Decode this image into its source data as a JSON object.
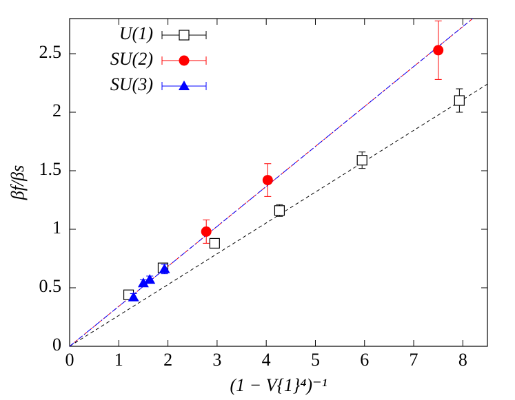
{
  "chart_data": {
    "type": "scatter",
    "x_label": "(1 − V{1}⁴)⁻¹",
    "y_label": "βf/βs",
    "xlim": [
      0,
      8.5
    ],
    "ylim": [
      0,
      2.8
    ],
    "xticks": [
      0,
      1,
      2,
      3,
      4,
      5,
      6,
      7,
      8
    ],
    "yticks": [
      0,
      0.5,
      1,
      1.5,
      2,
      2.5
    ],
    "legend": "upper left",
    "series": [
      {
        "name": "U(1)",
        "color": "#000000",
        "marker": "open-square",
        "x": [
          1.2,
          1.9,
          2.95,
          4.27,
          5.95,
          7.93
        ],
        "values": [
          0.44,
          0.67,
          0.88,
          1.16,
          1.59,
          2.1
        ],
        "errors": [
          0.02,
          0.03,
          0.03,
          0.05,
          0.07,
          0.1
        ]
      },
      {
        "name": "SU(2)",
        "color": "#ff0000",
        "marker": "filled-circle",
        "x": [
          2.78,
          4.03,
          7.5
        ],
        "values": [
          0.98,
          1.42,
          2.53
        ],
        "errors": [
          0.1,
          0.14,
          0.25
        ]
      },
      {
        "name": "SU(3)",
        "color": "#0000ff",
        "marker": "filled-triangle",
        "x": [
          1.3,
          1.5,
          1.63,
          1.93
        ],
        "values": [
          0.42,
          0.54,
          0.57,
          0.66
        ],
        "errors": [
          0.03,
          0.03,
          0.03,
          0.04
        ]
      }
    ],
    "fit_lines": [
      {
        "color": "#000000",
        "dash": "5,4",
        "x": [
          0,
          8.5
        ],
        "values": [
          0,
          2.24
        ]
      },
      {
        "color": "#ff0000",
        "dash": "6,3",
        "x": [
          0,
          8.2
        ],
        "values": [
          0,
          2.8
        ]
      },
      {
        "color": "#0000ff",
        "dash": "8,3,2,3",
        "x": [
          0,
          8.2
        ],
        "values": [
          0,
          2.8
        ]
      }
    ]
  }
}
